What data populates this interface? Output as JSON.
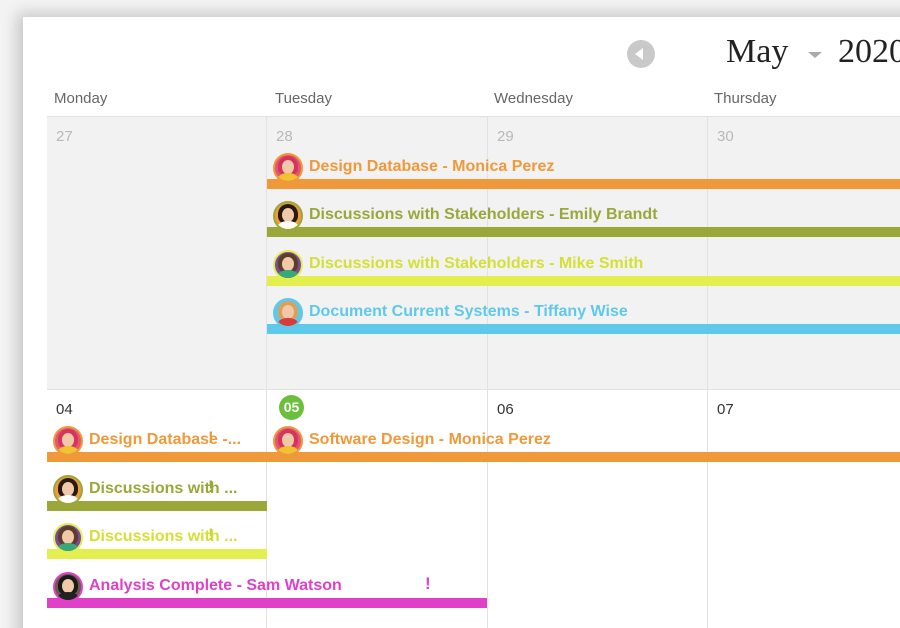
{
  "header": {
    "month": "May",
    "year": "2020"
  },
  "day_headers": [
    "Monday",
    "Tuesday",
    "Wednesday",
    "Thursday"
  ],
  "weeks": [
    {
      "dates": [
        "27",
        "28",
        "29",
        "30"
      ]
    },
    {
      "dates": [
        "04",
        "05",
        "06",
        "07"
      ]
    }
  ],
  "events": [
    {
      "title": "Design Database - Monica Perez",
      "color": "#f0993a",
      "person": "monica"
    },
    {
      "title": "Discussions with Stakeholders - Emily Brandt",
      "color": "#9aa83a",
      "person": "emily"
    },
    {
      "title": "Discussions with Stakeholders - Mike Smith",
      "color": "#e3ef4f",
      "person": "mike"
    },
    {
      "title": "Document Current Systems - Tiffany Wise",
      "color": "#5ec9ea",
      "person": "tiffany"
    },
    {
      "title": "Design Database -...",
      "color": "#f0993a",
      "person": "monica"
    },
    {
      "title": "Software Design - Monica Perez",
      "color": "#f0993a",
      "person": "monica"
    },
    {
      "title": "Discussions with ...",
      "color": "#9aa83a",
      "person": "emily"
    },
    {
      "title": "Discussions with ...",
      "color": "#e3ef4f",
      "person": "mike"
    },
    {
      "title": "Analysis Complete - Sam Watson",
      "color": "#e040c8",
      "person": "sam"
    }
  ],
  "icons": {
    "prev": "chevron-left-icon",
    "caret": "caret-down-icon",
    "warning": "exclamation-icon"
  },
  "warning_glyph": "!"
}
